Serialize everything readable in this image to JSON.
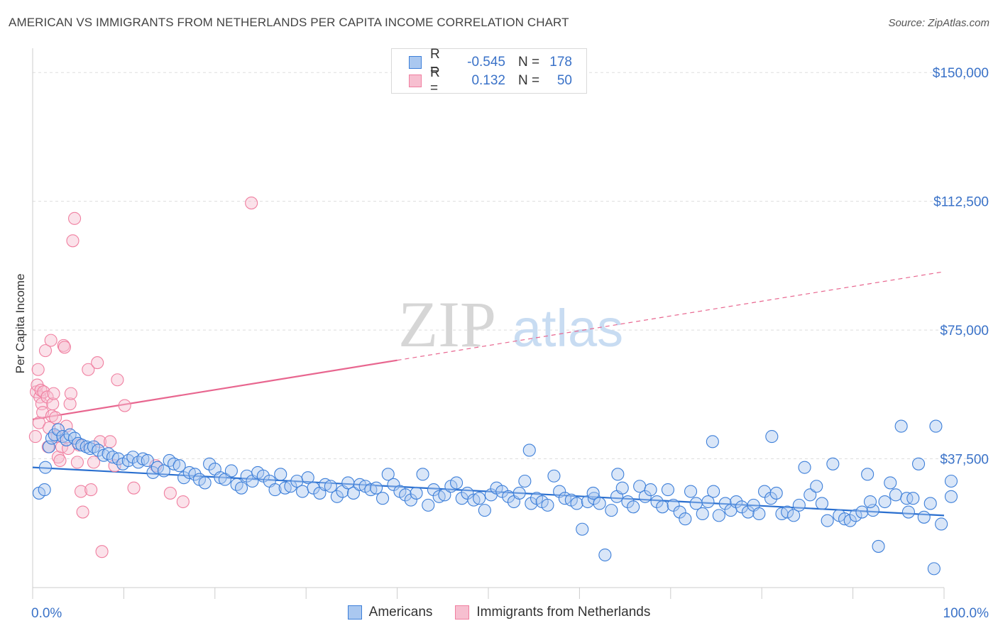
{
  "header": {
    "title": "AMERICAN VS IMMIGRANTS FROM NETHERLANDS PER CAPITA INCOME CORRELATION CHART",
    "source": "Source: ZipAtlas.com"
  },
  "colors": {
    "blue": "#3d7fd9",
    "blue_fill": "#aac8f0",
    "blue_line": "#2a6fcf",
    "pink": "#f07fa0",
    "pink_fill": "#f7bfd0",
    "pink_line": "#e8668f",
    "axis_label": "#3a72c8",
    "grid": "#dddddd"
  },
  "legend": {
    "rows": [
      {
        "r_label": "R =",
        "r": "-0.545",
        "n_label": "N =",
        "n": "178",
        "color": "blue"
      },
      {
        "r_label": "R =",
        "r": "0.132",
        "n_label": "N =",
        "n": "50",
        "color": "pink"
      }
    ]
  },
  "bottom_legend": [
    {
      "label": "Americans",
      "color": "blue"
    },
    {
      "label": "Immigrants from Netherlands",
      "color": "pink"
    }
  ],
  "watermark": {
    "zip": "ZIP",
    "atlas": "atlas"
  },
  "chart_data": {
    "type": "scatter",
    "title": "AMERICAN VS IMMIGRANTS FROM NETHERLANDS PER CAPITA INCOME CORRELATION CHART",
    "xlabel": "",
    "ylabel": "Per Capita Income",
    "xlim": [
      0,
      100
    ],
    "ylim": [
      0,
      155000
    ],
    "x_tick_labels": {
      "left": "0.0%",
      "right": "100.0%"
    },
    "y_ticks": [
      {
        "value": 37500,
        "label": "$37,500"
      },
      {
        "value": 75000,
        "label": "$75,000"
      },
      {
        "value": 112500,
        "label": "$112,500"
      },
      {
        "value": 150000,
        "label": "$150,000"
      }
    ],
    "grid": true,
    "legend_position": "top-center",
    "series": [
      {
        "name": "Americans",
        "color": "blue",
        "trend": {
          "x": [
            0,
            100
          ],
          "y": [
            35000,
            21000
          ],
          "dashed_from": null
        },
        "points": [
          [
            0.7,
            27500
          ],
          [
            1.3,
            28500
          ],
          [
            1.4,
            35000
          ],
          [
            1.8,
            41000
          ],
          [
            2.1,
            43500
          ],
          [
            2.4,
            44500
          ],
          [
            2.8,
            46000
          ],
          [
            3.3,
            44000
          ],
          [
            3.7,
            43000
          ],
          [
            4.1,
            44500
          ],
          [
            4.6,
            43500
          ],
          [
            5.0,
            42000
          ],
          [
            5.4,
            41500
          ],
          [
            5.9,
            41000
          ],
          [
            6.3,
            40500
          ],
          [
            6.7,
            41000
          ],
          [
            7.2,
            40000
          ],
          [
            7.8,
            38500
          ],
          [
            8.3,
            39000
          ],
          [
            8.8,
            38000
          ],
          [
            9.4,
            37500
          ],
          [
            9.9,
            36000
          ],
          [
            10.5,
            37000
          ],
          [
            11.0,
            38000
          ],
          [
            11.6,
            36500
          ],
          [
            12.1,
            37500
          ],
          [
            12.6,
            37000
          ],
          [
            13.2,
            33500
          ],
          [
            13.7,
            35000
          ],
          [
            14.4,
            34000
          ],
          [
            15.0,
            37000
          ],
          [
            15.5,
            36000
          ],
          [
            16.1,
            35500
          ],
          [
            16.6,
            32000
          ],
          [
            17.2,
            33500
          ],
          [
            17.8,
            33000
          ],
          [
            18.3,
            31500
          ],
          [
            18.9,
            30500
          ],
          [
            19.4,
            36000
          ],
          [
            20.0,
            34500
          ],
          [
            20.6,
            32000
          ],
          [
            21.1,
            31500
          ],
          [
            21.8,
            34000
          ],
          [
            22.4,
            30000
          ],
          [
            22.9,
            29000
          ],
          [
            23.5,
            32500
          ],
          [
            24.1,
            31000
          ],
          [
            24.7,
            33500
          ],
          [
            25.3,
            32500
          ],
          [
            26.0,
            31000
          ],
          [
            26.6,
            28500
          ],
          [
            27.2,
            33000
          ],
          [
            27.7,
            29000
          ],
          [
            28.3,
            29500
          ],
          [
            29.0,
            31000
          ],
          [
            29.6,
            28000
          ],
          [
            30.2,
            32000
          ],
          [
            30.8,
            29000
          ],
          [
            31.5,
            27500
          ],
          [
            32.1,
            30000
          ],
          [
            32.7,
            29500
          ],
          [
            33.4,
            26500
          ],
          [
            34.0,
            28000
          ],
          [
            34.6,
            30500
          ],
          [
            35.2,
            27500
          ],
          [
            35.9,
            30000
          ],
          [
            36.5,
            29500
          ],
          [
            37.1,
            28500
          ],
          [
            37.7,
            29000
          ],
          [
            38.4,
            26000
          ],
          [
            39.0,
            33000
          ],
          [
            39.6,
            30000
          ],
          [
            40.3,
            28000
          ],
          [
            40.9,
            27000
          ],
          [
            41.5,
            25500
          ],
          [
            42.1,
            27500
          ],
          [
            42.8,
            33000
          ],
          [
            43.4,
            24000
          ],
          [
            44.0,
            28500
          ],
          [
            44.6,
            26500
          ],
          [
            45.2,
            27000
          ],
          [
            45.9,
            29500
          ],
          [
            46.5,
            30500
          ],
          [
            47.1,
            26000
          ],
          [
            47.7,
            27500
          ],
          [
            48.4,
            25500
          ],
          [
            49.0,
            26000
          ],
          [
            49.6,
            22500
          ],
          [
            50.3,
            27000
          ],
          [
            50.9,
            29000
          ],
          [
            51.5,
            28000
          ],
          [
            52.2,
            26500
          ],
          [
            52.8,
            25000
          ],
          [
            53.4,
            27500
          ],
          [
            54.0,
            31000
          ],
          [
            54.7,
            24500
          ],
          [
            55.3,
            26000
          ],
          [
            55.9,
            25000
          ],
          [
            56.5,
            24000
          ],
          [
            57.2,
            32500
          ],
          [
            57.8,
            28000
          ],
          [
            58.4,
            26000
          ],
          [
            59.1,
            25500
          ],
          [
            59.7,
            24500
          ],
          [
            60.3,
            17000
          ],
          [
            60.9,
            25000
          ],
          [
            61.6,
            26000
          ],
          [
            62.2,
            24500
          ],
          [
            62.8,
            9500
          ],
          [
            63.5,
            22500
          ],
          [
            64.1,
            26500
          ],
          [
            64.7,
            29000
          ],
          [
            65.3,
            25000
          ],
          [
            65.9,
            23500
          ],
          [
            66.6,
            29500
          ],
          [
            67.2,
            26500
          ],
          [
            67.8,
            28500
          ],
          [
            68.5,
            25000
          ],
          [
            69.1,
            23500
          ],
          [
            69.7,
            28500
          ],
          [
            70.3,
            24000
          ],
          [
            71.0,
            22000
          ],
          [
            71.6,
            20000
          ],
          [
            72.2,
            28000
          ],
          [
            72.8,
            24500
          ],
          [
            73.5,
            21500
          ],
          [
            74.1,
            25000
          ],
          [
            74.7,
            28000
          ],
          [
            75.3,
            21000
          ],
          [
            76.0,
            24500
          ],
          [
            76.6,
            22500
          ],
          [
            77.2,
            25000
          ],
          [
            77.8,
            23500
          ],
          [
            78.5,
            22000
          ],
          [
            79.1,
            24000
          ],
          [
            79.7,
            21500
          ],
          [
            80.3,
            28000
          ],
          [
            81.0,
            26000
          ],
          [
            81.6,
            27500
          ],
          [
            82.2,
            21500
          ],
          [
            82.8,
            22000
          ],
          [
            83.5,
            21000
          ],
          [
            84.1,
            24000
          ],
          [
            84.7,
            35000
          ],
          [
            85.3,
            27000
          ],
          [
            86.0,
            29500
          ],
          [
            86.6,
            24500
          ],
          [
            87.2,
            19500
          ],
          [
            87.8,
            36000
          ],
          [
            88.5,
            21000
          ],
          [
            89.1,
            20000
          ],
          [
            89.7,
            19500
          ],
          [
            90.3,
            21000
          ],
          [
            91.0,
            22000
          ],
          [
            91.6,
            33000
          ],
          [
            92.2,
            22500
          ],
          [
            92.8,
            12000
          ],
          [
            93.5,
            25000
          ],
          [
            94.1,
            30500
          ],
          [
            94.7,
            27000
          ],
          [
            95.3,
            47000
          ],
          [
            95.9,
            26000
          ],
          [
            96.6,
            26000
          ],
          [
            97.2,
            36000
          ],
          [
            97.8,
            20500
          ],
          [
            98.5,
            24500
          ],
          [
            99.1,
            47000
          ],
          [
            99.7,
            18500
          ],
          [
            74.6,
            42500
          ],
          [
            81.1,
            44000
          ],
          [
            54.5,
            40000
          ],
          [
            61.5,
            27500
          ],
          [
            64.2,
            33000
          ],
          [
            91.9,
            25000
          ],
          [
            96.1,
            22000
          ],
          [
            98.9,
            5500
          ],
          [
            101.5,
            31000
          ],
          [
            102.5,
            26500
          ]
        ]
      },
      {
        "name": "Immigrants from Netherlands",
        "color": "pink",
        "trend": {
          "x": [
            0,
            100
          ],
          "y": [
            49000,
            92000
          ],
          "dashed_from": 40
        },
        "points": [
          [
            0.3,
            44000
          ],
          [
            0.4,
            57000
          ],
          [
            0.5,
            59000
          ],
          [
            0.6,
            63500
          ],
          [
            0.7,
            48000
          ],
          [
            0.8,
            55500
          ],
          [
            0.9,
            57500
          ],
          [
            1.0,
            53500
          ],
          [
            1.1,
            51000
          ],
          [
            1.2,
            57000
          ],
          [
            1.4,
            69000
          ],
          [
            1.6,
            55500
          ],
          [
            1.7,
            41000
          ],
          [
            1.8,
            46500
          ],
          [
            2.0,
            72000
          ],
          [
            2.1,
            50000
          ],
          [
            2.2,
            53500
          ],
          [
            2.3,
            56500
          ],
          [
            2.5,
            49500
          ],
          [
            2.7,
            44000
          ],
          [
            2.8,
            38000
          ],
          [
            3.0,
            37000
          ],
          [
            3.2,
            41000
          ],
          [
            3.4,
            70500
          ],
          [
            3.5,
            70000
          ],
          [
            3.7,
            47000
          ],
          [
            3.9,
            40500
          ],
          [
            4.1,
            53500
          ],
          [
            4.2,
            56500
          ],
          [
            4.4,
            101000
          ],
          [
            4.6,
            107500
          ],
          [
            4.9,
            36500
          ],
          [
            5.1,
            41500
          ],
          [
            5.3,
            28000
          ],
          [
            5.5,
            22000
          ],
          [
            6.1,
            63500
          ],
          [
            6.4,
            28500
          ],
          [
            6.7,
            36500
          ],
          [
            7.1,
            65500
          ],
          [
            7.4,
            42500
          ],
          [
            7.6,
            10500
          ],
          [
            8.5,
            42500
          ],
          [
            9.0,
            35500
          ],
          [
            9.3,
            60500
          ],
          [
            10.1,
            53000
          ],
          [
            11.1,
            29000
          ],
          [
            13.5,
            35500
          ],
          [
            15.1,
            27500
          ],
          [
            16.5,
            25000
          ],
          [
            24.0,
            112000
          ]
        ]
      }
    ]
  }
}
